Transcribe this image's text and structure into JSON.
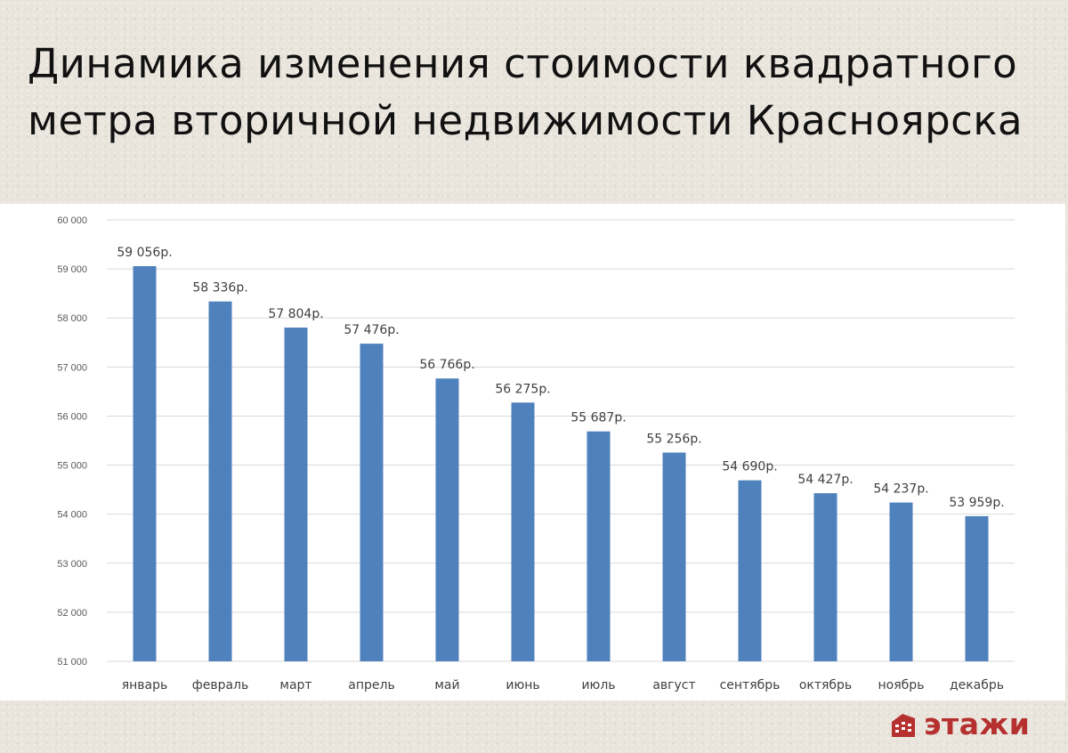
{
  "slide": {
    "title_line1": "Динамика изменения стоимости квадратного",
    "title_line2": "метра вторичной недвижимости Красноярска"
  },
  "brand": {
    "name": "этажи",
    "color": "#b5302e"
  },
  "chart_data": {
    "type": "bar",
    "title": "",
    "xlabel": "",
    "ylabel": "",
    "categories": [
      "январь",
      "февраль",
      "март",
      "апрель",
      "май",
      "июнь",
      "июль",
      "август",
      "сентябрь",
      "октябрь",
      "ноябрь",
      "декабрь"
    ],
    "values": [
      59056,
      58336,
      57804,
      57476,
      56766,
      56275,
      55687,
      55256,
      54690,
      54427,
      54237,
      53959
    ],
    "data_labels": [
      "59 056р.",
      "58 336р.",
      "57 804р.",
      "57 476р.",
      "56 766р.",
      "56 275р.",
      "55 687р.",
      "55 256р.",
      "54 690р.",
      "54 427р.",
      "54 237р.",
      "53 959р."
    ],
    "ylim": [
      51000,
      60000
    ],
    "y_ticks": [
      51000,
      52000,
      53000,
      54000,
      55000,
      56000,
      57000,
      58000,
      59000,
      60000
    ],
    "y_tick_labels": [
      "51 000",
      "52 000",
      "53 000",
      "54 000",
      "55 000",
      "56 000",
      "57 000",
      "58 000",
      "59 000",
      "60 000"
    ],
    "grid": true,
    "legend": "none",
    "bar_color": "#4f81bd"
  }
}
